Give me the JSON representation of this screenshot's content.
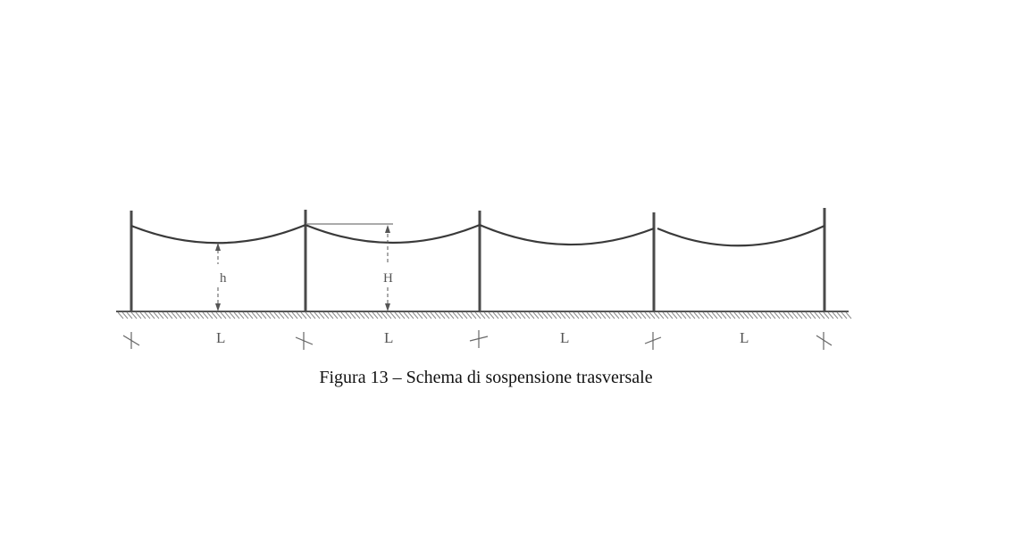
{
  "diagram": {
    "height_low_label": "h",
    "height_high_label": "H",
    "span_labels": [
      "L",
      "L",
      "L",
      "L"
    ]
  },
  "caption": "Figura 13 – Schema di sospensione trasversale"
}
